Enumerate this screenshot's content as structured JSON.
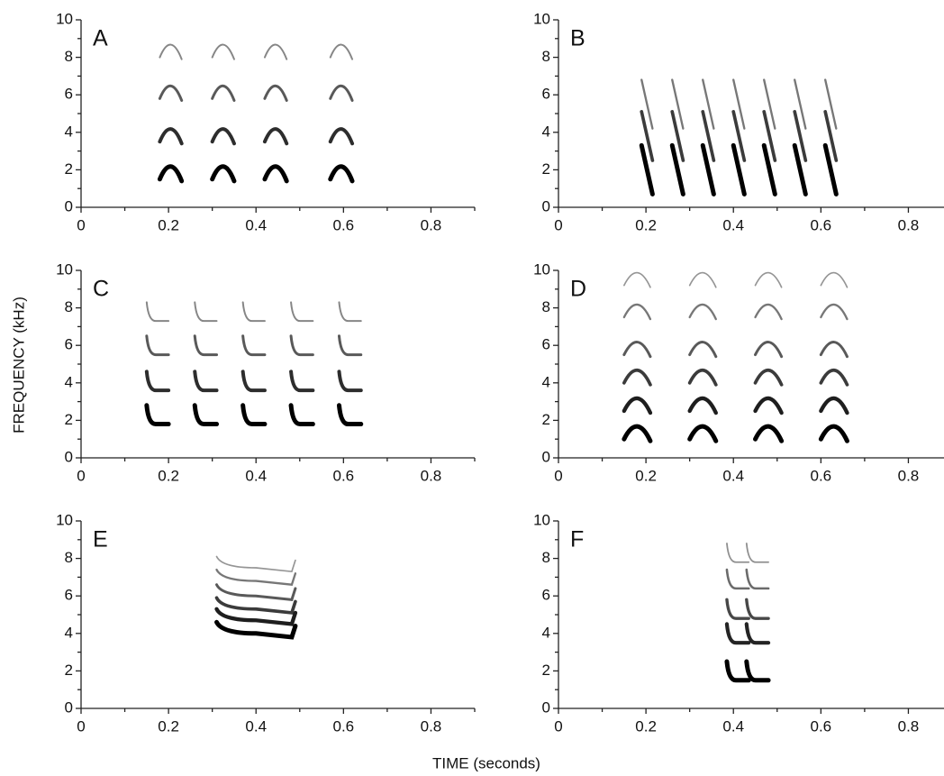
{
  "y_label": "FREQUENCY (kHz)",
  "x_label": "TIME (seconds)",
  "chart_data": [
    {
      "type": "spectrogram",
      "label": "A",
      "xlim": [
        0,
        0.9
      ],
      "ylim": [
        0,
        10
      ],
      "xticks": [
        0,
        0.2,
        0.4,
        0.6,
        0.8
      ],
      "yticks": [
        0,
        2,
        4,
        6,
        8,
        10
      ],
      "shape": "arch",
      "onsets": [
        0.18,
        0.3,
        0.42,
        0.57
      ],
      "duration": 0.05,
      "harmonics": [
        2,
        4,
        6.3,
        8.5
      ]
    },
    {
      "type": "spectrogram",
      "label": "B",
      "xlim": [
        0,
        0.9
      ],
      "ylim": [
        0,
        10
      ],
      "xticks": [
        0,
        0.2,
        0.4,
        0.6,
        0.8
      ],
      "yticks": [
        0,
        2,
        4,
        6,
        8,
        10
      ],
      "shape": "sweep",
      "onsets": [
        0.19,
        0.26,
        0.33,
        0.4,
        0.47,
        0.54,
        0.61
      ],
      "duration": 0.025,
      "harmonics": [
        2,
        3.8,
        5.5
      ]
    },
    {
      "type": "spectrogram",
      "label": "C",
      "xlim": [
        0,
        0.9
      ],
      "ylim": [
        0,
        10
      ],
      "xticks": [
        0,
        0.2,
        0.4,
        0.6,
        0.8
      ],
      "yticks": [
        0,
        2,
        4,
        6,
        8,
        10
      ],
      "shape": "hook",
      "onsets": [
        0.15,
        0.26,
        0.37,
        0.48,
        0.59
      ],
      "duration": 0.05,
      "harmonics": [
        1.8,
        3.6,
        5.5,
        7.3
      ]
    },
    {
      "type": "spectrogram",
      "label": "D",
      "xlim": [
        0,
        0.9
      ],
      "ylim": [
        0,
        10
      ],
      "xticks": [
        0,
        0.2,
        0.4,
        0.6,
        0.8
      ],
      "yticks": [
        0,
        2,
        4,
        6,
        8,
        10
      ],
      "shape": "arch",
      "onsets": [
        0.15,
        0.3,
        0.45,
        0.6
      ],
      "duration": 0.06,
      "harmonics": [
        1.5,
        3,
        4.5,
        6,
        8,
        9.7
      ]
    },
    {
      "type": "spectrogram",
      "label": "E",
      "xlim": [
        0,
        0.9
      ],
      "ylim": [
        0,
        10
      ],
      "xticks": [
        0,
        0.2,
        0.4,
        0.6,
        0.8
      ],
      "yticks": [
        0,
        2,
        4,
        6,
        8,
        10
      ],
      "shape": "flat",
      "onsets": [
        0.31
      ],
      "duration": 0.18,
      "harmonics": [
        4,
        4.7,
        5.3,
        6,
        6.8,
        7.5
      ]
    },
    {
      "type": "spectrogram",
      "label": "F",
      "xlim": [
        0,
        0.9
      ],
      "ylim": [
        0,
        10
      ],
      "xticks": [
        0,
        0.2,
        0.4,
        0.6,
        0.8
      ],
      "yticks": [
        0,
        2,
        4,
        6,
        8,
        10
      ],
      "shape": "hook",
      "onsets": [
        0.385,
        0.43
      ],
      "duration": 0.05,
      "harmonics": [
        1.5,
        3.5,
        4.8,
        6.4,
        7.8
      ]
    }
  ]
}
